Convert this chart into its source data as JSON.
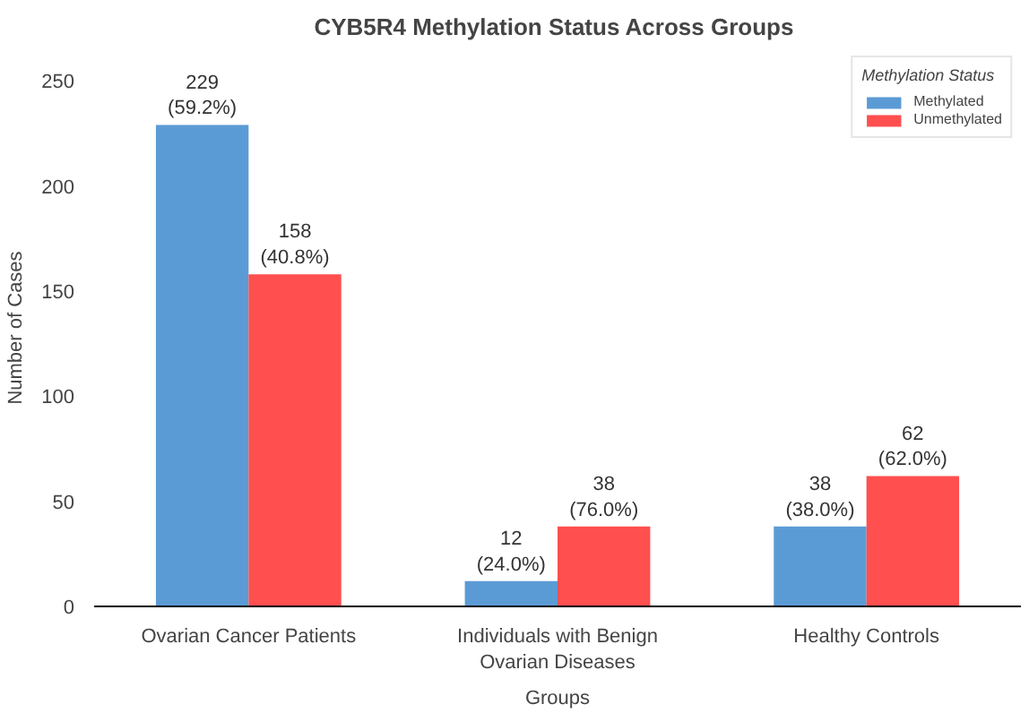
{
  "chart_data": {
    "type": "bar",
    "title": "CYB5R4  Methylation Status Across Groups",
    "categories": [
      "Ovarian Cancer Patients",
      "Individuals with Benign Ovarian Diseases",
      "Healthy Controls"
    ],
    "series": [
      {
        "name": "Methylated",
        "color": "#5b9bd5",
        "values": [
          229,
          12,
          38
        ],
        "value_labels": [
          "229 (59.2%)",
          "12 (24.0%)",
          "38 (38.0%)"
        ]
      },
      {
        "name": "Unmethylated",
        "color": "#ff4f4f",
        "values": [
          158,
          38,
          62
        ],
        "value_labels": [
          "158 (40.8%)",
          "38 (76.0%)",
          "62 (62.0%)"
        ]
      }
    ],
    "xlabel": "Groups",
    "ylabel": "Number of Cases",
    "legend_title": "Methylation Status",
    "ylim": [
      0,
      265
    ],
    "yticks": [
      0,
      50,
      100,
      150,
      200,
      250
    ],
    "legend": "top right",
    "grid": false
  }
}
